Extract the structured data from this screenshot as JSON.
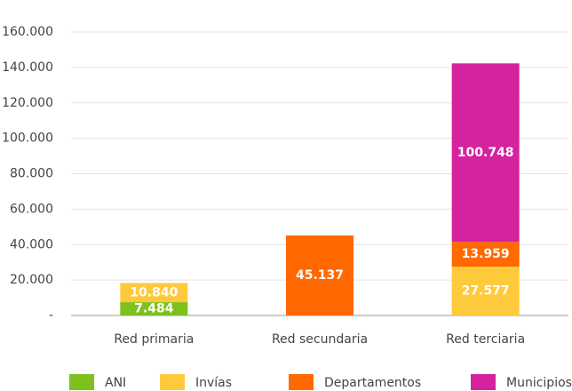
{
  "chart_data": {
    "type": "stacked_bar",
    "categories": [
      "Red primaria",
      "Red secundaria",
      "Red terciaria"
    ],
    "series": [
      {
        "name": "ANI",
        "color": "#7dc11f",
        "values": [
          7484,
          null,
          null
        ],
        "value_labels": [
          "7.484",
          null,
          null
        ]
      },
      {
        "name": "Invías",
        "color": "#ffc93c",
        "values": [
          10840,
          null,
          27577
        ],
        "value_labels": [
          "10.840",
          null,
          "27.577"
        ]
      },
      {
        "name": "Departamentos",
        "color": "#ff6900",
        "values": [
          null,
          45137,
          13959
        ],
        "value_labels": [
          null,
          "45.137",
          "13.959"
        ]
      },
      {
        "name": "Municipios",
        "color": "#d5229f",
        "values": [
          null,
          null,
          100748
        ],
        "value_labels": [
          null,
          null,
          "100.748"
        ]
      }
    ],
    "ylim": [
      0,
      160000
    ],
    "yticks": [
      {
        "value": 0,
        "label": "-"
      },
      {
        "value": 20000,
        "label": "20.000"
      },
      {
        "value": 40000,
        "label": "40.000"
      },
      {
        "value": 60000,
        "label": "60.000"
      },
      {
        "value": 80000,
        "label": "80.000"
      },
      {
        "value": 100000,
        "label": "100.000"
      },
      {
        "value": 120000,
        "label": "120.000"
      },
      {
        "value": 140000,
        "label": "140.000"
      },
      {
        "value": 160000,
        "label": "160.000"
      }
    ],
    "grid": true,
    "legend": "bottom"
  }
}
